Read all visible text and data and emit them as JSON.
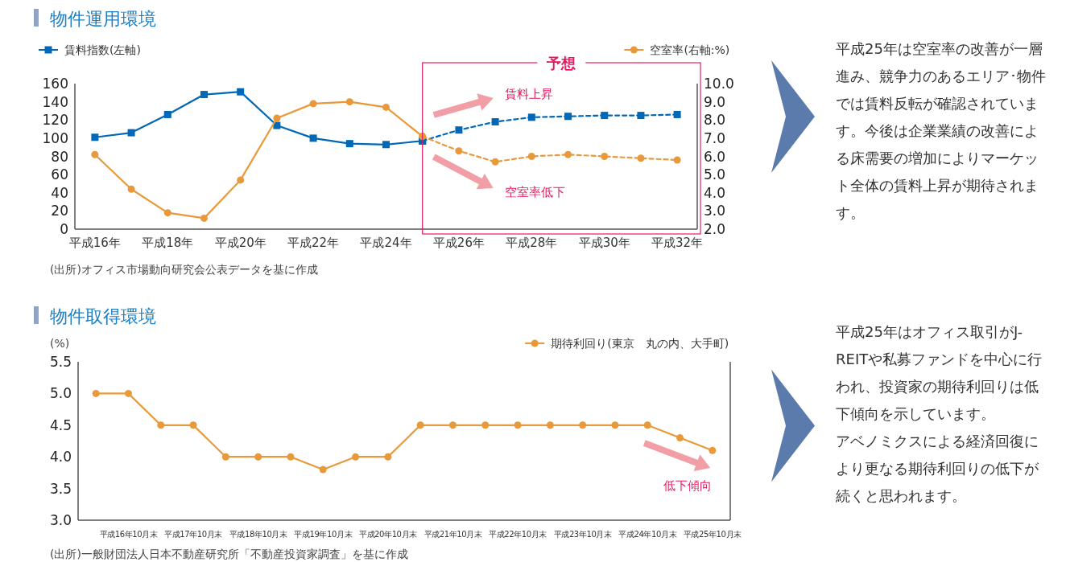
{
  "chart_data": [
    {
      "type": "line",
      "title": "物件運用環境",
      "categories": [
        "平成16年",
        null,
        "平成18年",
        null,
        "平成20年",
        null,
        "平成22年",
        null,
        "平成24年",
        null,
        "平成26年",
        null,
        "平成28年",
        null,
        "平成30年",
        null,
        "平成32年"
      ],
      "series": [
        {
          "name": "賃料指数(左軸)",
          "color": "#0068b7",
          "marker": "square",
          "line_style": "solid",
          "values": [
            101,
            106,
            126,
            148,
            151,
            114,
            100,
            94,
            93,
            97,
            null,
            null,
            null,
            null,
            null,
            null,
            null
          ]
        },
        {
          "color": "#0068b7",
          "marker": "square",
          "line_style": "dashed",
          "values": [
            null,
            null,
            null,
            null,
            null,
            null,
            null,
            null,
            null,
            97,
            109,
            118,
            123,
            124,
            125,
            125,
            126
          ]
        },
        {
          "name": "空室率(右軸:%)",
          "color": "#e8993a",
          "marker": "circle",
          "line_style": "solid",
          "axis": "y2",
          "values": [
            6.1,
            4.2,
            2.9,
            2.6,
            4.7,
            8.1,
            8.9,
            9.0,
            8.7,
            7.1,
            null,
            null,
            null,
            null,
            null,
            null,
            null
          ]
        },
        {
          "color": "#e8993a",
          "marker": "circle",
          "line_style": "dashed",
          "axis": "y2",
          "values": [
            null,
            null,
            null,
            null,
            null,
            null,
            null,
            null,
            null,
            7.1,
            6.3,
            5.7,
            6.0,
            6.1,
            6.0,
            5.9,
            5.8
          ]
        }
      ],
      "ylim": [
        0,
        160
      ],
      "yticks": [
        0,
        20,
        40,
        60,
        80,
        100,
        120,
        140,
        160
      ],
      "y2lim": [
        2,
        10
      ],
      "y2ticks": [
        {
          "value": 2,
          "label": "2.0"
        },
        {
          "value": 3,
          "label": "3.0"
        },
        {
          "value": 4,
          "label": "4.0"
        },
        {
          "value": 5,
          "label": "5.0"
        },
        {
          "value": 6,
          "label": "6.0"
        },
        {
          "value": 7,
          "label": "7.0"
        },
        {
          "value": 8,
          "label": "8.0"
        },
        {
          "value": 9,
          "label": "9.0"
        },
        {
          "value": 10,
          "label": "10.0"
        }
      ],
      "grid": false,
      "legend": "top",
      "annotations": [
        "予想",
        "賃料上昇",
        "空室率低下",
        "(出所)オフィス市場動向研究会公表データを基に作成",
        "平成25年は空室率の改善が一層進み、競争力のあるエリア･物件では賃料反転が確認されています。今後は企業業績の改善による床需要の増加によりマーケット全体の賃料上昇が期待されます。"
      ]
    },
    {
      "type": "line",
      "title": "物件取得環境",
      "ylabel": "(%)",
      "categories": [
        null,
        "平成16年10月末",
        null,
        "平成17年10月末",
        null,
        "平成18年10月末",
        null,
        "平成19年10月末",
        null,
        "平成20年10月末",
        null,
        "平成21年10月末",
        null,
        "平成22年10月末",
        null,
        "平成23年10月末",
        null,
        "平成24年10月末",
        null,
        "平成25年10月末"
      ],
      "series": [
        {
          "name": "期待利回り(東京　丸の内、大手町)",
          "color": "#e8993a",
          "values": [
            5.0,
            5.0,
            4.5,
            4.5,
            4.0,
            4.0,
            4.0,
            3.8,
            4.0,
            4.0,
            4.5,
            4.5,
            4.5,
            4.5,
            4.5,
            4.5,
            4.5,
            4.5,
            4.3,
            4.1
          ]
        }
      ],
      "marker": "circle",
      "line_style": "solid",
      "ylim": [
        3,
        5.5
      ],
      "yticks": [
        {
          "value": 3,
          "label": "3.0"
        },
        {
          "value": 3.5,
          "label": "3.5"
        },
        {
          "value": 4,
          "label": "4.0"
        },
        {
          "value": 4.5,
          "label": "4.5"
        },
        {
          "value": 5,
          "label": "5.0"
        },
        {
          "value": 5.5,
          "label": "5.5"
        }
      ],
      "grid": false,
      "legend": "top right",
      "annotations": [
        "低下傾向",
        "(出所)一般財団法人日本不動産研究所「不動産投資家調査」を基に作成",
        "平成25年はオフィス取引がJ-REITや私募ファンドを中心に行われ、投資家の期待利回りは低下傾向を示しています。",
        "アベノミクスによる経済回復により更なる期待利回りの低下が続くと思われます。"
      ]
    }
  ]
}
